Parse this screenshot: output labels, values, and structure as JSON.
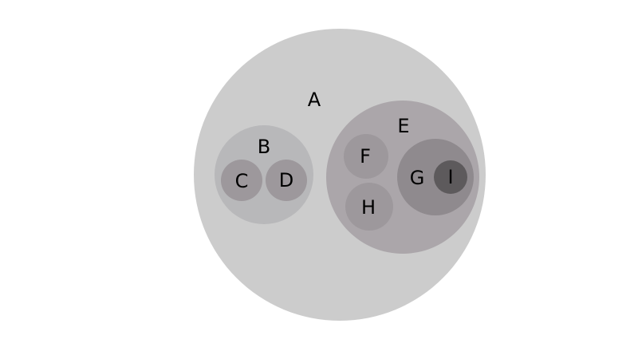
{
  "diagram": {
    "type": "nested-circles",
    "nodes": [
      {
        "id": "A",
        "label": "A",
        "parent": null,
        "color": "#cccccc"
      },
      {
        "id": "B",
        "label": "B",
        "parent": "A",
        "color": "#b8b8ba"
      },
      {
        "id": "C",
        "label": "C",
        "parent": "B",
        "color": "#9d989c"
      },
      {
        "id": "D",
        "label": "D",
        "parent": "B",
        "color": "#9d989c"
      },
      {
        "id": "E",
        "label": "E",
        "parent": "A",
        "color": "#aba6aa"
      },
      {
        "id": "F",
        "label": "F",
        "parent": "E",
        "color": "#9d989c"
      },
      {
        "id": "H",
        "label": "H",
        "parent": "E",
        "color": "#9d989c"
      },
      {
        "id": "G",
        "label": "G",
        "parent": "E",
        "color": "#8f8a8e"
      },
      {
        "id": "I",
        "label": "I",
        "parent": "G",
        "color": "#5d5a5c"
      }
    ]
  }
}
